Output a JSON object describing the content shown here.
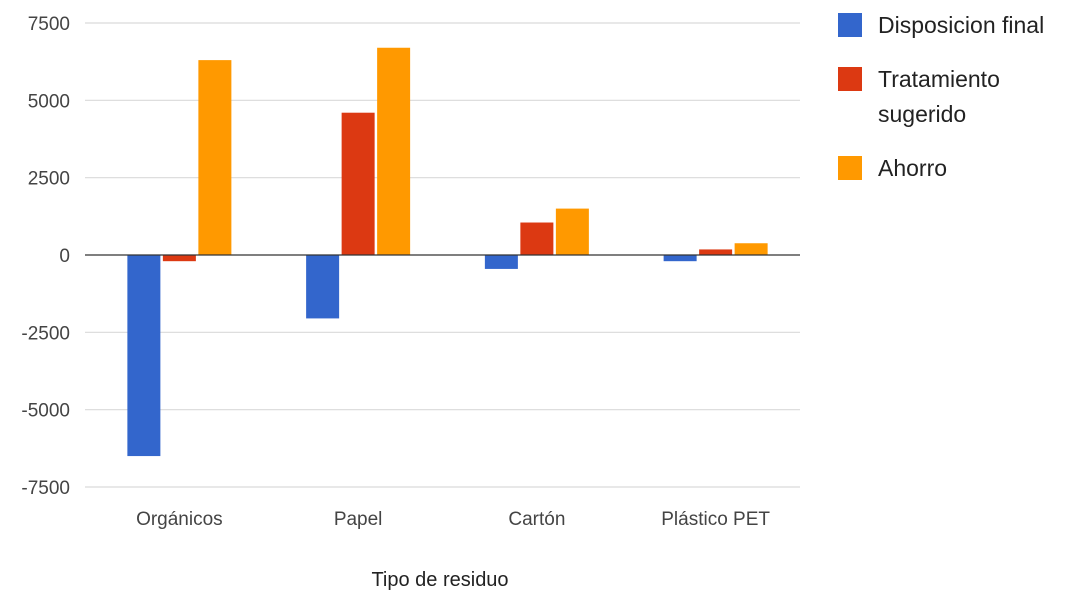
{
  "chart_data": {
    "type": "bar",
    "title": "",
    "xlabel": "Tipo de residuo",
    "ylabel": "",
    "categories": [
      "Orgánicos",
      "Papel",
      "Cartón",
      "Plástico PET"
    ],
    "series": [
      {
        "name": "Disposicion final",
        "color": "#3366cc",
        "values": [
          -6500,
          -2050,
          -450,
          -200
        ]
      },
      {
        "name": "Tratamiento sugerido",
        "color": "#dc3912",
        "values": [
          -200,
          4600,
          1050,
          180
        ]
      },
      {
        "name": "Ahorro",
        "color": "#ff9900",
        "values": [
          6300,
          6700,
          1500,
          380
        ]
      }
    ],
    "ylim": [
      -7500,
      7500
    ],
    "yticks": [
      7500,
      5000,
      2500,
      0,
      -2500,
      -5000,
      -7500
    ],
    "grid": true,
    "legend_position": "right",
    "legend_lines": [
      [
        "Disposicion final"
      ],
      [
        "Tratamiento",
        "sugerido"
      ],
      [
        "Ahorro"
      ]
    ]
  }
}
